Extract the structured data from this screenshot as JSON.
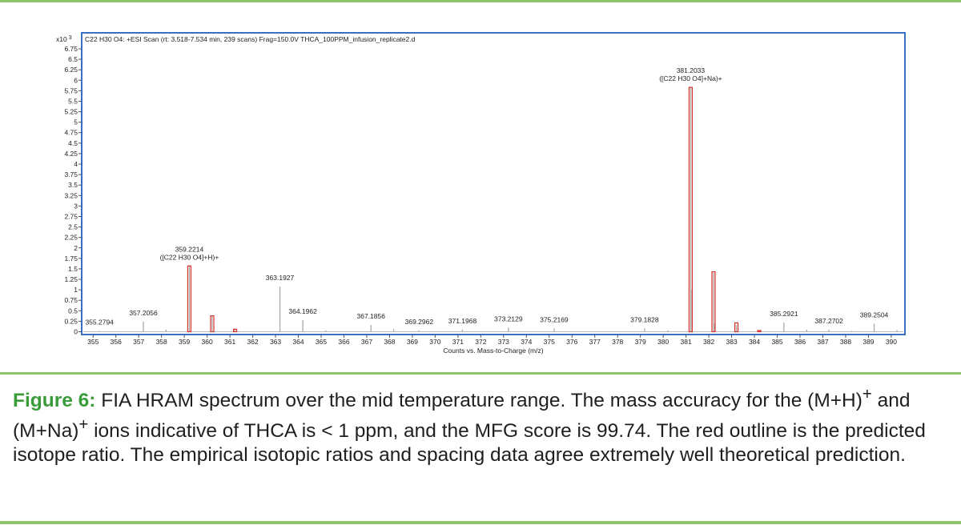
{
  "chart_data": {
    "type": "bar",
    "title": "C22 H30 O4: +ESI Scan (rt: 3.518-7.534 min, 239 scans) Frag=150.0V THCA_100PPM_infusion_replicate2.d",
    "xlabel": "Counts vs. Mass-to-Charge (m/z)",
    "ylabel": "",
    "y_multiplier": "x10",
    "y_exponent": "3",
    "xlim": [
      354.5,
      390.6
    ],
    "ylim": [
      0,
      6.85
    ],
    "x_ticks": [
      355,
      356,
      357,
      358,
      359,
      360,
      361,
      362,
      363,
      364,
      365,
      366,
      367,
      368,
      369,
      370,
      371,
      372,
      373,
      374,
      375,
      376,
      377,
      378,
      379,
      380,
      381,
      382,
      383,
      384,
      385,
      386,
      387,
      388,
      389,
      390
    ],
    "y_ticks": [
      "0",
      "0.25",
      "0.5",
      "0.75",
      "1",
      "1.25",
      "1.5",
      "1.75",
      "2",
      "2.25",
      "2.5",
      "2.75",
      "3",
      "3.25",
      "3.5",
      "3.75",
      "4",
      "4.25",
      "4.5",
      "4.75",
      "5",
      "5.25",
      "5.5",
      "5.75",
      "6",
      "6.25",
      "6.5",
      "6.75"
    ],
    "grid": false,
    "series": [
      {
        "points": [
          {
            "x": 355.2794,
            "y": 0.02
          },
          {
            "x": 357.2056,
            "y": 0.24
          },
          {
            "x": 358.2,
            "y": 0.05
          },
          {
            "x": 359.2214,
            "y": 1.57
          },
          {
            "x": 360.22,
            "y": 0.38
          },
          {
            "x": 361.22,
            "y": 0.06
          },
          {
            "x": 363.1927,
            "y": 1.08
          },
          {
            "x": 364.1962,
            "y": 0.28
          },
          {
            "x": 365.2,
            "y": 0.03
          },
          {
            "x": 367.1856,
            "y": 0.16
          },
          {
            "x": 368.18,
            "y": 0.06
          },
          {
            "x": 369.2962,
            "y": 0.03
          },
          {
            "x": 371.1968,
            "y": 0.05
          },
          {
            "x": 373.2129,
            "y": 0.1
          },
          {
            "x": 375.2169,
            "y": 0.08
          },
          {
            "x": 379.1828,
            "y": 0.08
          },
          {
            "x": 380.2,
            "y": 0.03
          },
          {
            "x": 381.2033,
            "y": 5.83
          },
          {
            "x": 381.26,
            "y": 1.0
          },
          {
            "x": 382.2066,
            "y": 1.4
          },
          {
            "x": 382.26,
            "y": 0.2
          },
          {
            "x": 383.21,
            "y": 0.16
          },
          {
            "x": 384.21,
            "y": 0.03
          },
          {
            "x": 385.2921,
            "y": 0.22
          },
          {
            "x": 386.29,
            "y": 0.05
          },
          {
            "x": 387.2702,
            "y": 0.05
          },
          {
            "x": 388.27,
            "y": 0.02
          },
          {
            "x": 389.2504,
            "y": 0.19
          },
          {
            "x": 390.25,
            "y": 0.04
          }
        ]
      }
    ],
    "predicted_isotopes": [
      {
        "x": 359.2214,
        "y": 1.57
      },
      {
        "x": 360.2248,
        "y": 0.38
      },
      {
        "x": 361.2281,
        "y": 0.06
      },
      {
        "x": 381.2033,
        "y": 5.83
      },
      {
        "x": 382.2066,
        "y": 1.43
      },
      {
        "x": 383.21,
        "y": 0.21
      },
      {
        "x": 384.2134,
        "y": 0.03
      }
    ],
    "peak_labels": [
      {
        "x": 355.2794,
        "y": 0.02,
        "lines": [
          "355.2794"
        ]
      },
      {
        "x": 357.2056,
        "y": 0.24,
        "lines": [
          "357.2056"
        ]
      },
      {
        "x": 359.2214,
        "y": 1.57,
        "lines": [
          "359.2214",
          "([C22 H30 O4]+H)+"
        ]
      },
      {
        "x": 363.1927,
        "y": 1.08,
        "lines": [
          "363.1927"
        ]
      },
      {
        "x": 364.1962,
        "y": 0.28,
        "lines": [
          "364.1962"
        ]
      },
      {
        "x": 367.1856,
        "y": 0.16,
        "lines": [
          "367.1856"
        ]
      },
      {
        "x": 369.2962,
        "y": 0.03,
        "lines": [
          "369.2962"
        ]
      },
      {
        "x": 371.1968,
        "y": 0.05,
        "lines": [
          "371.1968"
        ]
      },
      {
        "x": 373.2129,
        "y": 0.1,
        "lines": [
          "373.2129"
        ]
      },
      {
        "x": 375.2169,
        "y": 0.08,
        "lines": [
          "375.2169"
        ]
      },
      {
        "x": 379.1828,
        "y": 0.08,
        "lines": [
          "379.1828"
        ]
      },
      {
        "x": 381.2033,
        "y": 5.83,
        "lines": [
          "381.2033",
          "([C22 H30 O4]+Na)+"
        ]
      },
      {
        "x": 385.2921,
        "y": 0.22,
        "lines": [
          "385.2921"
        ]
      },
      {
        "x": 387.2702,
        "y": 0.05,
        "lines": [
          "387.2702"
        ]
      },
      {
        "x": 389.2504,
        "y": 0.19,
        "lines": [
          "389.2504"
        ]
      }
    ],
    "colors": {
      "frame": "#3a6fc4",
      "measured": "#a8a8a8",
      "predicted": "#d8322e",
      "text": "#222222",
      "axis": "#555555"
    }
  },
  "caption": {
    "label": "Figure 6:",
    "text1": " FIA HRAM spectrum over the mid temperature range. The mass accuracy for the (M+H)",
    "sup1": "+",
    "text2": " and (M+Na)",
    "sup2": "+",
    "text3": " ions indicative of THCA is < 1 ppm, and the MFG score is 99.74. The red outline is the predicted isotope ratio. The empirical isotopic ratios and spacing data agree extremely well theoretical prediction."
  },
  "colors": {
    "rule": "#8cc56a",
    "caption_label": "#3a9b3a"
  }
}
